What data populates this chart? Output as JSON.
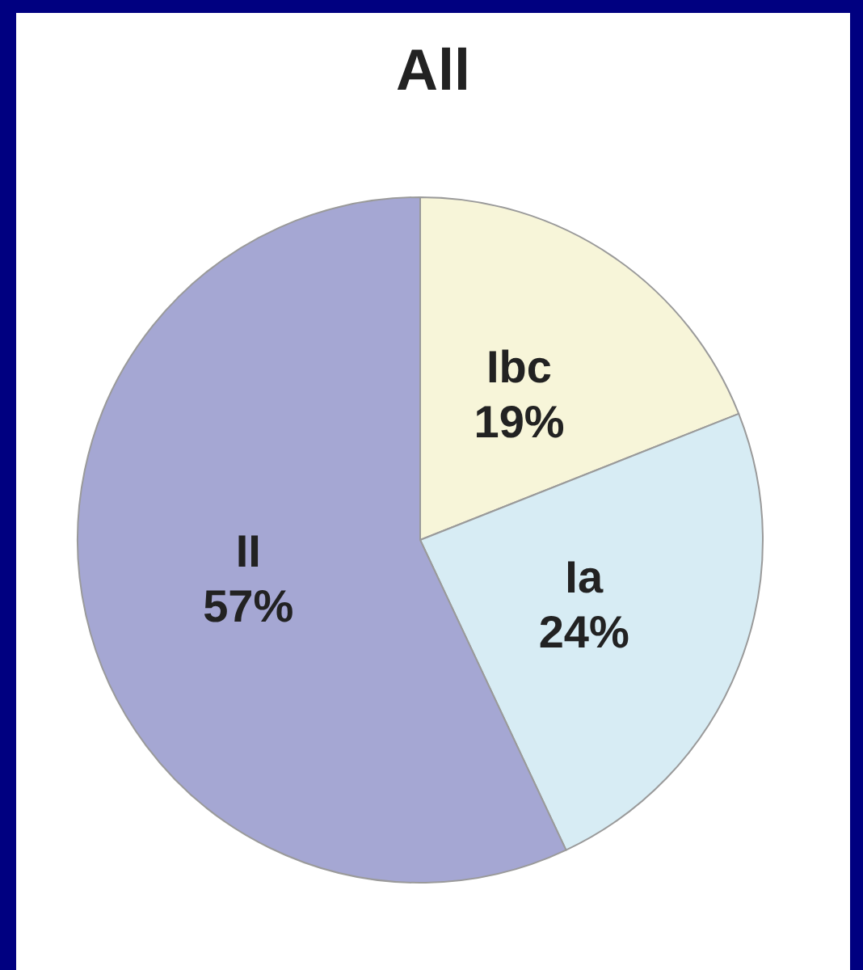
{
  "chart_data": {
    "type": "pie",
    "title": "All",
    "categories": [
      "Ibc",
      "Ia",
      "II"
    ],
    "values": [
      19,
      24,
      57
    ],
    "colors": [
      "#f7f5d9",
      "#d7ecf4",
      "#a5a7d3"
    ],
    "value_labels": [
      "19%",
      "24%",
      "57%"
    ]
  }
}
